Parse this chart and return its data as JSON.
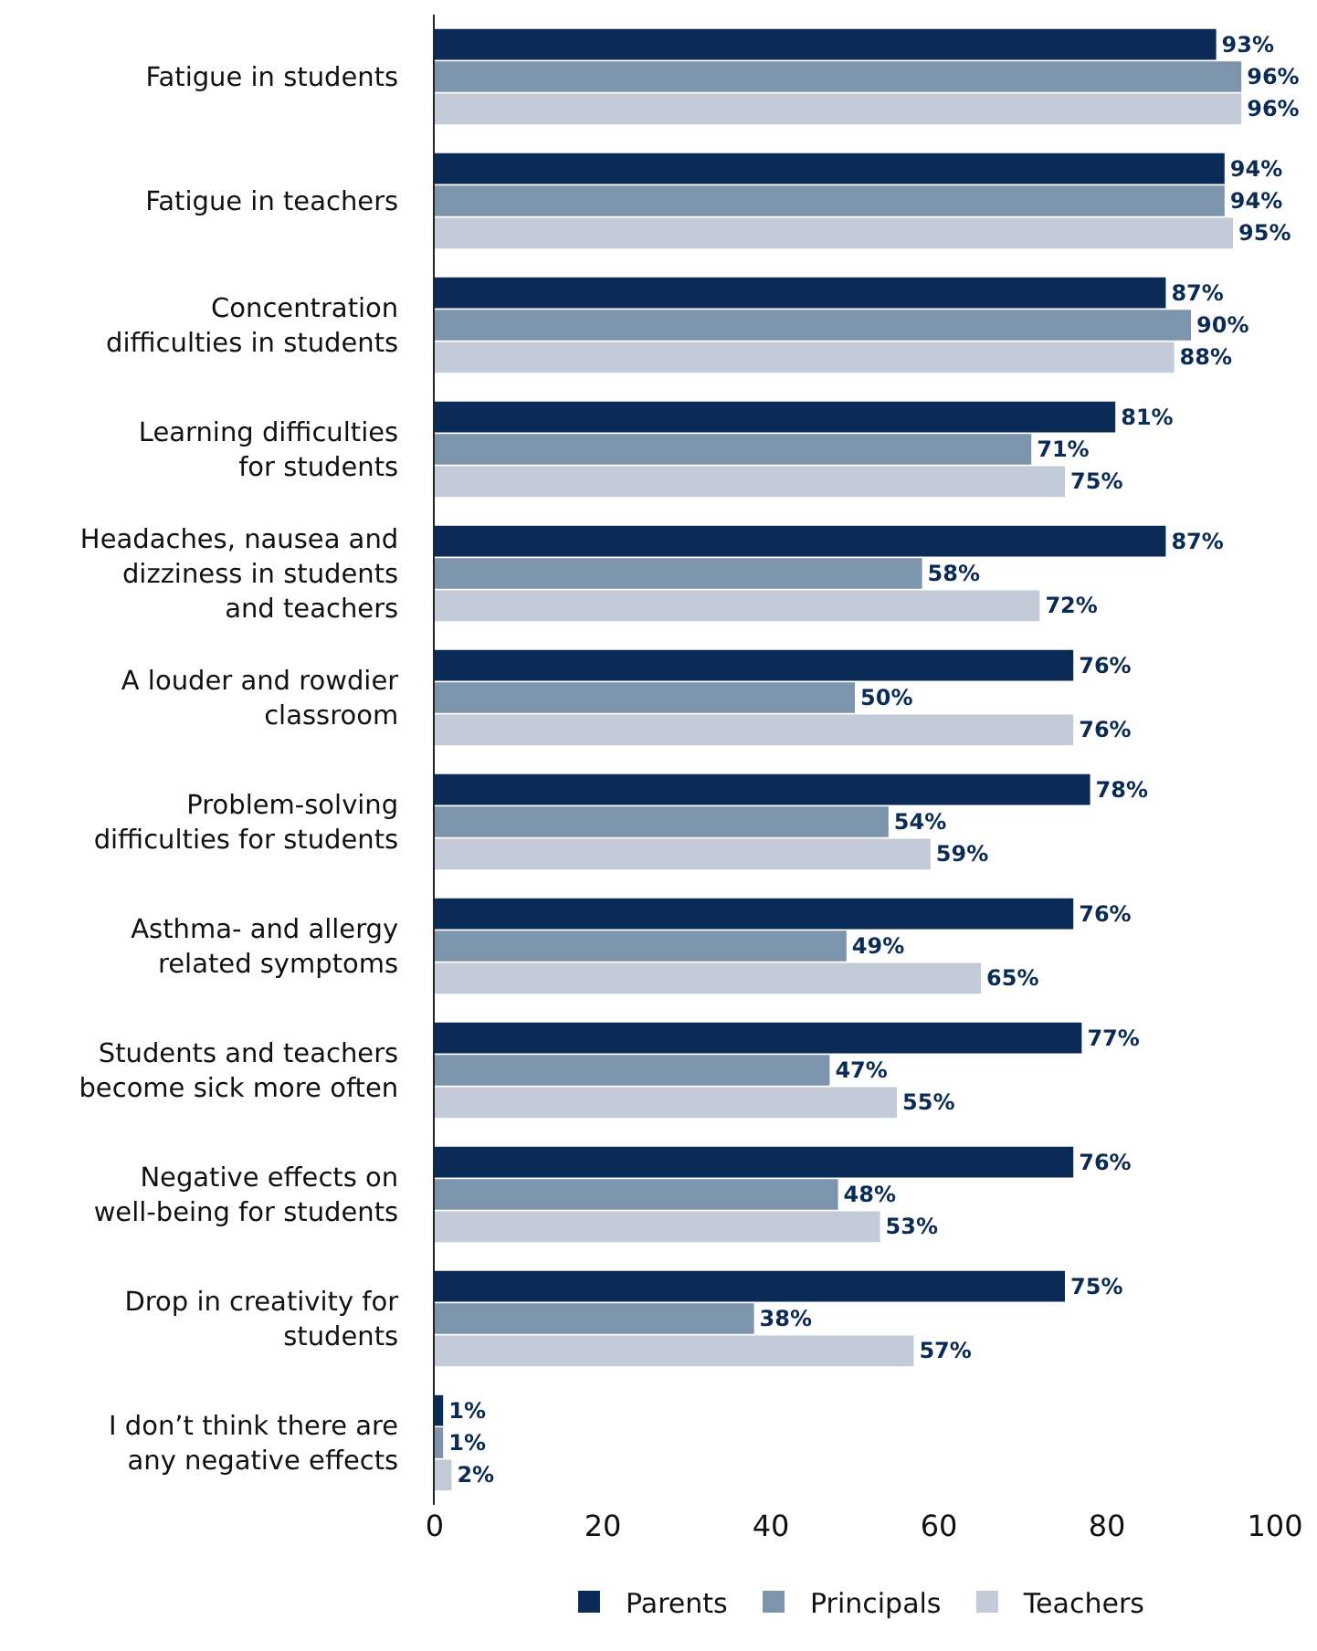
{
  "chart_data": {
    "type": "bar",
    "orientation": "horizontal",
    "categories": [
      "Fatigue in students",
      "Fatigue in teachers",
      "Concentration\ndifficulties in students",
      "Learning difficulties\nfor students",
      "Headaches, nausea and\ndizziness in students\nand teachers",
      "A louder and rowdier\nclassroom",
      "Problem-solving\ndifficulties for students",
      "Asthma- and allergy\nrelated symptoms",
      "Students and teachers\nbecome sick more often",
      "Negative effects on\nwell-being for students",
      "Drop in creativity for\nstudents",
      "I don’t think there are\nany negative effects"
    ],
    "series": [
      {
        "name": "Parents",
        "color": "#0b2b57",
        "values": [
          93,
          94,
          87,
          81,
          87,
          76,
          78,
          76,
          77,
          76,
          75,
          1
        ],
        "value_labels": [
          "93%",
          "94%",
          "87%",
          "81%",
          "87%",
          "76%",
          "78%",
          "76%",
          "77%",
          "76%",
          "75%",
          "1%"
        ]
      },
      {
        "name": "Principals",
        "color": "#7d94ad",
        "values": [
          96,
          94,
          90,
          71,
          58,
          50,
          54,
          49,
          47,
          48,
          38,
          1
        ],
        "value_labels": [
          "96%",
          "94%",
          "90%",
          "71%",
          "58%",
          "50%",
          "54%",
          "49%",
          "47%",
          "48%",
          "38%",
          "1%"
        ]
      },
      {
        "name": "Teachers",
        "color": "#c2cbd7",
        "values": [
          96,
          95,
          88,
          75,
          72,
          76,
          59,
          65,
          55,
          53,
          57,
          2
        ],
        "value_labels": [
          "96%",
          "95%",
          "88%",
          "75%",
          "72%",
          "76%",
          "59%",
          "65%",
          "55%",
          "53%",
          "57%",
          "2%"
        ]
      }
    ],
    "xlim": [
      0,
      100
    ],
    "xticks": [
      0,
      20,
      40,
      60,
      80,
      100
    ],
    "legend": "bottom"
  }
}
